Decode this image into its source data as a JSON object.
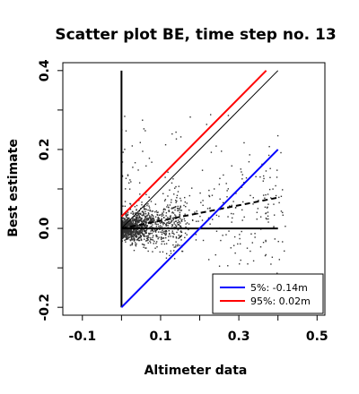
{
  "chart_data": {
    "type": "scatter",
    "title": "Scatter plot BE, time step no. 13",
    "xlabel": "Altimeter data",
    "ylabel": "Best estimate",
    "xlim": [
      -0.15,
      0.52
    ],
    "ylim": [
      -0.22,
      0.42
    ],
    "x_ticks": [
      -0.1,
      0.1,
      0.3,
      0.5
    ],
    "x_tick_labels": [
      "-0.1",
      "0.1",
      "0.3",
      "0.5"
    ],
    "x_minor_ticks": [
      0.0,
      0.2,
      0.4
    ],
    "y_ticks": [
      -0.2,
      0.0,
      0.2,
      0.4
    ],
    "y_tick_labels": [
      "-0.2",
      "0.0",
      "0.2",
      "0.4"
    ],
    "y_minor_ticks": [
      -0.1,
      0.1,
      0.3
    ],
    "grid": false,
    "point_color": "#333333",
    "points_cluster": {
      "count": 1500,
      "x_range": [
        0.0,
        0.45
      ],
      "y_center": 0.0
    },
    "lines": [
      {
        "role": "one-to-one",
        "color": "#000000",
        "style": "solid",
        "x": [
          0.0,
          0.4
        ],
        "y": [
          0.0,
          0.4
        ]
      },
      {
        "role": "zero",
        "color": "#000000",
        "style": "solid",
        "x": [
          0.0,
          0.4
        ],
        "y": [
          0.0,
          0.0
        ]
      },
      {
        "role": "regression",
        "color": "#000000",
        "style": "dashed",
        "x": [
          0.0,
          0.4
        ],
        "y": [
          0.0,
          0.078
        ]
      },
      {
        "role": "vertical-axis-ref",
        "color": "#000000",
        "style": "solid",
        "x": [
          0.0,
          0.0
        ],
        "y": [
          -0.2,
          0.4
        ]
      },
      {
        "role": "5%",
        "color": "#0000ff",
        "style": "solid",
        "x": [
          0.0,
          0.4
        ],
        "y": [
          -0.2,
          0.2
        ]
      },
      {
        "role": "95%",
        "color": "#ff0000",
        "style": "solid",
        "x": [
          0.0,
          0.37
        ],
        "y": [
          0.03,
          0.4
        ]
      }
    ],
    "legend": {
      "position": "bottom-right",
      "entries": [
        {
          "label": "5%: -0.14m",
          "color": "#0000ff"
        },
        {
          "label": "95%:  0.02m",
          "color": "#ff0000"
        }
      ]
    }
  }
}
